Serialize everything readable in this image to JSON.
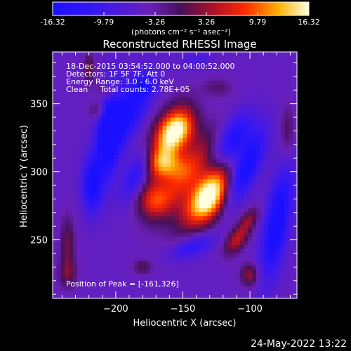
{
  "colorbar": {
    "ticks": [
      "-16.32",
      "-9.79",
      "-3.26",
      "3.26",
      "9.79",
      "16.32"
    ],
    "unit_label": "(photons cm⁻² s⁻¹ asec⁻²)",
    "range": [
      -16.32,
      16.32
    ]
  },
  "chart_data": {
    "type": "heatmap",
    "title": "Reconstructed RHESSI Image",
    "xlabel": "Heliocentric X (arcsec)",
    "ylabel": "Heliocentric Y (arcsec)",
    "xlim": [
      -247,
      -65
    ],
    "ylim": [
      207,
      388
    ],
    "x_ticks": [
      -200,
      -150,
      -100
    ],
    "y_ticks": [
      250,
      300,
      350
    ],
    "x_tick_labels": [
      "−200",
      "−150",
      "−100"
    ],
    "y_tick_labels": [
      "250",
      "300",
      "350"
    ],
    "annotations": [
      "18-Dec-2015 03:54:52.000 to 04:00:52.000",
      "Detectors: 1F 5F 7F, Att 0",
      "Energy Range: 3.0 - 6.0 keV",
      "Clean     Total counts: 2.78E+05"
    ],
    "peak_label": "Position of Peak = [-161,326]",
    "peak": [
      -161,
      326
    ],
    "sources": [
      {
        "x": -161,
        "y": 326,
        "amp": 16.3,
        "sx": 9,
        "sy": 18,
        "angle": 30
      },
      {
        "x": -163,
        "y": 305,
        "amp": 12.0,
        "sx": 10,
        "sy": 8,
        "angle": 0
      },
      {
        "x": -146,
        "y": 300,
        "amp": 11.0,
        "sx": 8,
        "sy": 26,
        "angle": 35
      },
      {
        "x": -133,
        "y": 285,
        "amp": 15.0,
        "sx": 8,
        "sy": 22,
        "angle": 35
      },
      {
        "x": -128,
        "y": 278,
        "amp": 13.0,
        "sx": 8,
        "sy": 14,
        "angle": 30
      },
      {
        "x": -172,
        "y": 280,
        "amp": 11.0,
        "sx": 9,
        "sy": 10,
        "angle": 20
      },
      {
        "x": -152,
        "y": 330,
        "amp": 10.0,
        "sx": 8,
        "sy": 10,
        "angle": 30
      },
      {
        "x": -110,
        "y": 250,
        "amp": 10.0,
        "sx": 5,
        "sy": 9,
        "angle": 35
      },
      {
        "x": -100,
        "y": 265,
        "amp": 7.0,
        "sx": 4,
        "sy": 7,
        "angle": 35
      },
      {
        "x": -100,
        "y": 224,
        "amp": 8.5,
        "sx": 5,
        "sy": 6,
        "angle": 0
      },
      {
        "x": -205,
        "y": 359,
        "amp": 7.0,
        "sx": 7,
        "sy": 5,
        "angle": 20
      },
      {
        "x": -213,
        "y": 345,
        "amp": 6.0,
        "sx": 5,
        "sy": 5,
        "angle": 0
      },
      {
        "x": -220,
        "y": 376,
        "amp": 7.5,
        "sx": 3,
        "sy": 7,
        "angle": 0
      },
      {
        "x": -236,
        "y": 248,
        "amp": 6.5,
        "sx": 4,
        "sy": 14,
        "angle": 0
      },
      {
        "x": -236,
        "y": 225,
        "amp": 6.0,
        "sx": 5,
        "sy": 8,
        "angle": 0
      },
      {
        "x": -180,
        "y": 230,
        "amp": 5.5,
        "sx": 5,
        "sy": 4,
        "angle": 0
      },
      {
        "x": -72,
        "y": 330,
        "amp": 5.0,
        "sx": 4,
        "sy": 14,
        "angle": 0
      },
      {
        "x": -124,
        "y": 362,
        "amp": 4.0,
        "sx": 8,
        "sy": 5,
        "angle": 0
      },
      {
        "x": -205,
        "y": 330,
        "amp": -16.0,
        "sx": 6,
        "sy": 24,
        "angle": 5
      },
      {
        "x": -218,
        "y": 290,
        "amp": -12.0,
        "sx": 5,
        "sy": 14,
        "angle": 0
      },
      {
        "x": -190,
        "y": 345,
        "amp": -12.0,
        "sx": 8,
        "sy": 20,
        "angle": 25
      },
      {
        "x": -183,
        "y": 300,
        "amp": -10.0,
        "sx": 6,
        "sy": 16,
        "angle": 25
      },
      {
        "x": -113,
        "y": 322,
        "amp": -12.0,
        "sx": 8,
        "sy": 16,
        "angle": 30
      },
      {
        "x": -103,
        "y": 302,
        "amp": -13.0,
        "sx": 6,
        "sy": 20,
        "angle": 25
      },
      {
        "x": -80,
        "y": 262,
        "amp": -14.0,
        "sx": 6,
        "sy": 28,
        "angle": 10
      },
      {
        "x": -143,
        "y": 245,
        "amp": -8.0,
        "sx": 12,
        "sy": 5,
        "angle": -20
      },
      {
        "x": -178,
        "y": 363,
        "amp": -6.0,
        "sx": 6,
        "sy": 5,
        "angle": 0
      },
      {
        "x": -140,
        "y": 382,
        "amp": -4.0,
        "sx": 8,
        "sy": 4,
        "angle": 0
      }
    ]
  },
  "footer_date": "24-May-2022 13:22"
}
